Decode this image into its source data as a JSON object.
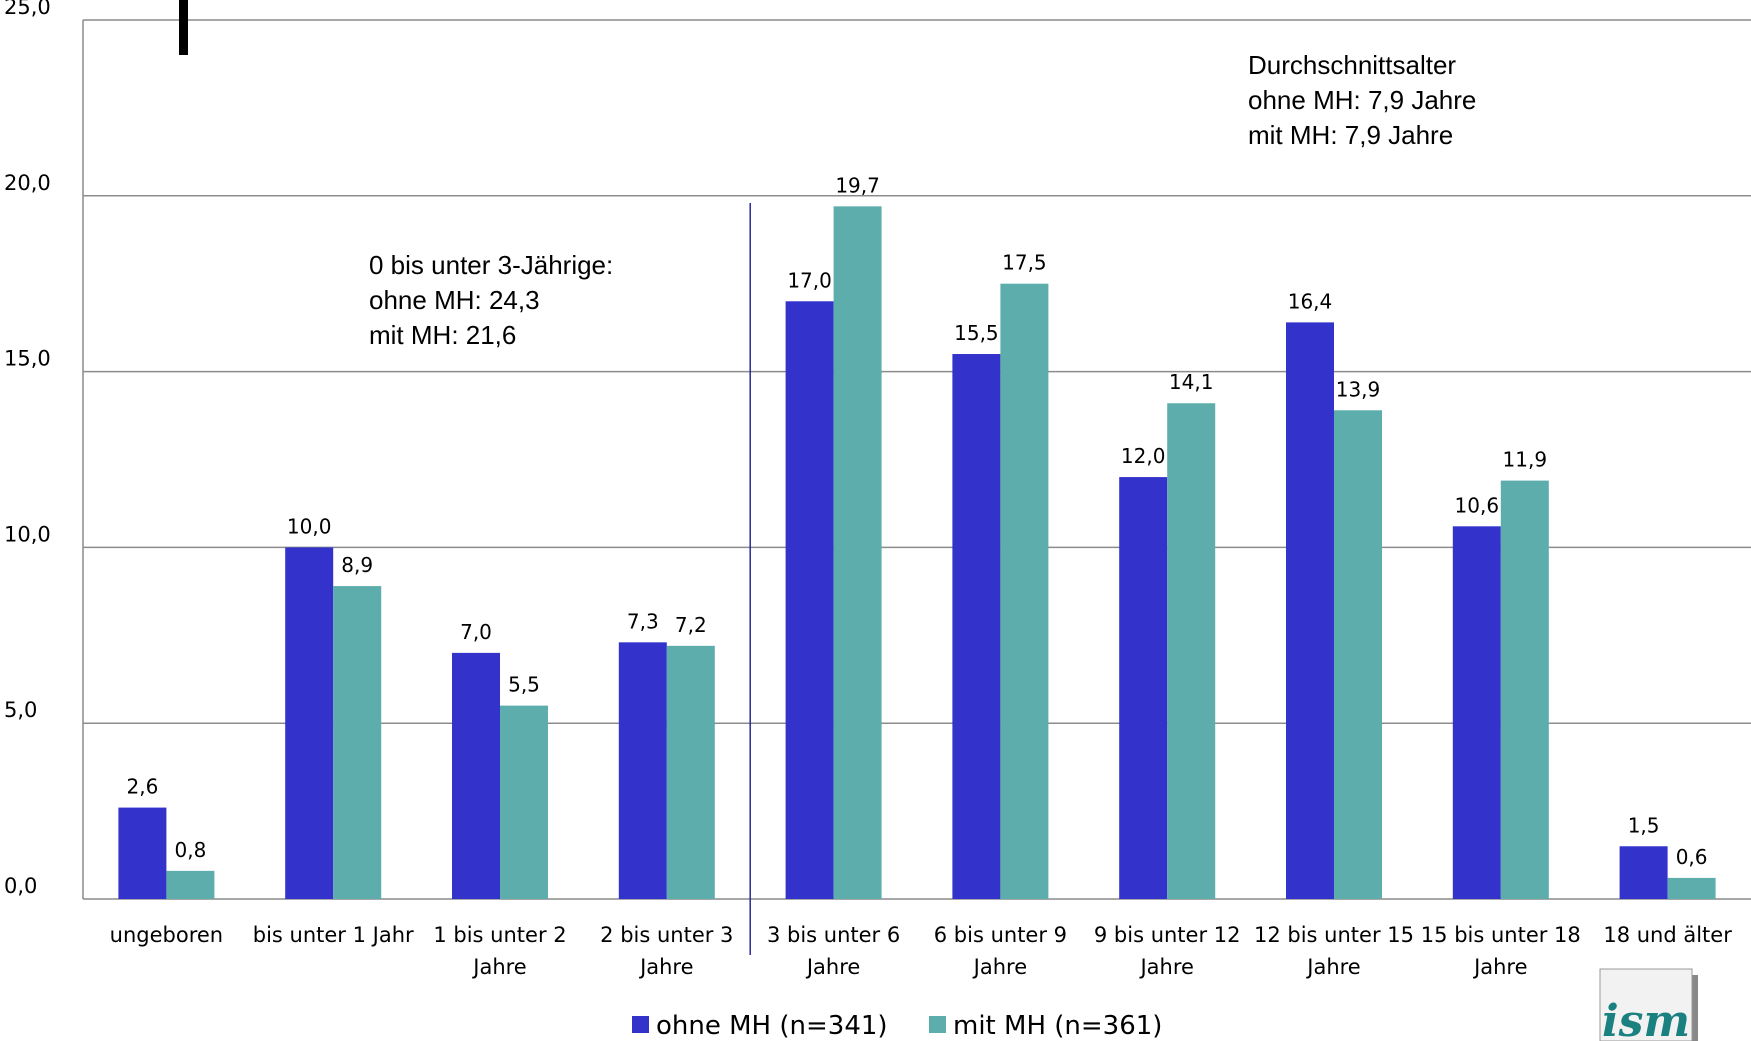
{
  "chart_data": {
    "type": "bar",
    "categories": [
      [
        "ungeboren"
      ],
      [
        "bis unter 1 Jahr"
      ],
      [
        "1 bis unter 2",
        "Jahre"
      ],
      [
        "2 bis unter 3",
        "Jahre"
      ],
      [
        "3 bis unter 6",
        "Jahre"
      ],
      [
        "6 bis unter 9",
        "Jahre"
      ],
      [
        "9 bis unter 12",
        "Jahre"
      ],
      [
        "12 bis unter 15",
        "Jahre"
      ],
      [
        "15 bis unter 18",
        "Jahre"
      ],
      [
        "18 und älter"
      ]
    ],
    "series": [
      {
        "name": "ohne MH (n=341)",
        "color": "#3333cc",
        "values": [
          2.6,
          10.0,
          7.0,
          7.3,
          17.0,
          15.5,
          12.0,
          16.4,
          10.6,
          1.5
        ],
        "labels": [
          "2,6",
          "10,0",
          "7,0",
          "7,3",
          "17,0",
          "15,5",
          "12,0",
          "16,4",
          "10,6",
          "1,5"
        ]
      },
      {
        "name": "mit MH (n=361)",
        "color": "#5eadad",
        "values": [
          0.8,
          8.9,
          5.5,
          7.2,
          19.7,
          17.5,
          14.1,
          13.9,
          11.9,
          0.6
        ],
        "labels": [
          "0,8",
          "8,9",
          "5,5",
          "7,2",
          "19,7",
          "17,5",
          "14,1",
          "13,9",
          "11,9",
          "0,6"
        ]
      }
    ],
    "ylim": [
      0,
      25
    ],
    "yticks": [
      0,
      5,
      10,
      15,
      20,
      25
    ],
    "ytick_labels": [
      "0,0",
      "5,0",
      "10,0",
      "15,0",
      "20,0",
      "25,0"
    ],
    "grid": true,
    "legend": "bottom-center",
    "divider_after_category": 3,
    "annotations": {
      "age_avg": [
        "Durchschnittsalter",
        "ohne MH: 7,9 Jahre",
        "mit MH: 7,9 Jahre"
      ],
      "under3": [
        "0 bis unter 3-Jährige:",
        "ohne MH: 24,3",
        "mit MH: 21,6"
      ]
    },
    "logo": {
      "text": "ism",
      "color": "#1a8080"
    }
  }
}
